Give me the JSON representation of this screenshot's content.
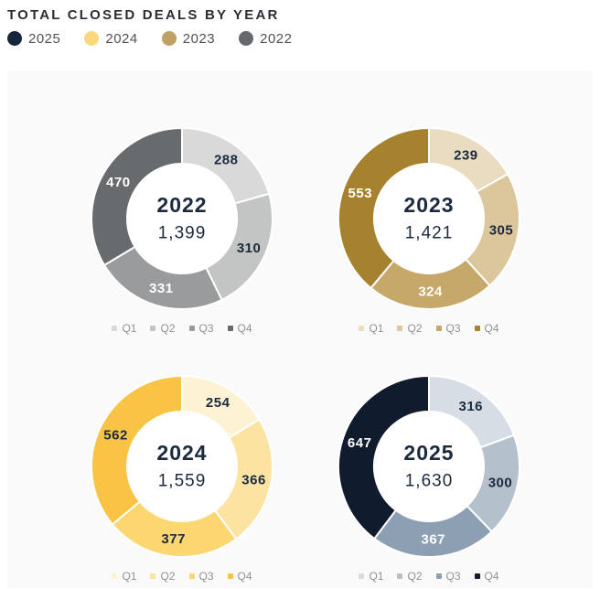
{
  "header": {
    "title": "TOTAL CLOSED DEALS BY YEAR",
    "year_legend": [
      {
        "label": "2025",
        "color": "#17253c"
      },
      {
        "label": "2024",
        "color": "#fbd87c"
      },
      {
        "label": "2023",
        "color": "#c0a164"
      },
      {
        "label": "2022",
        "color": "#65686c"
      }
    ]
  },
  "panel": {
    "background": "#fafafa"
  },
  "text_colors": {
    "dark": "#1c2a3e",
    "light": "#ffffff"
  },
  "chart_data": [
    {
      "type": "donut",
      "year": "2022",
      "total": 1399,
      "total_display": "1,399",
      "categories": [
        "Q1",
        "Q2",
        "Q3",
        "Q4"
      ],
      "values": [
        288,
        310,
        331,
        470
      ],
      "slice_colors": [
        "#d9d9d9",
        "#c3c4c4",
        "#9a9b9c",
        "#686b6e"
      ],
      "value_label_colors": [
        "dark",
        "dark",
        "light",
        "light"
      ],
      "legend_position": "bottom",
      "start_angle": "top",
      "direction": "clockwise"
    },
    {
      "type": "donut",
      "year": "2023",
      "total": 1421,
      "total_display": "1,421",
      "categories": [
        "Q1",
        "Q2",
        "Q3",
        "Q4"
      ],
      "values": [
        239,
        305,
        324,
        553
      ],
      "slice_colors": [
        "#eadcc0",
        "#dcc69b",
        "#c7a86b",
        "#a6822f"
      ],
      "value_label_colors": [
        "dark",
        "dark",
        "light",
        "light"
      ],
      "legend_position": "bottom",
      "start_angle": "top",
      "direction": "clockwise"
    },
    {
      "type": "donut",
      "year": "2024",
      "total": 1559,
      "total_display": "1,559",
      "categories": [
        "Q1",
        "Q2",
        "Q3",
        "Q4"
      ],
      "values": [
        254,
        366,
        377,
        562
      ],
      "slice_colors": [
        "#fdf2d3",
        "#fde3a2",
        "#fcd671",
        "#f9c445"
      ],
      "value_label_colors": [
        "dark",
        "dark",
        "dark",
        "dark"
      ],
      "legend_position": "bottom",
      "start_angle": "top",
      "direction": "clockwise"
    },
    {
      "type": "donut",
      "year": "2025",
      "total": 1630,
      "total_display": "1,630",
      "categories": [
        "Q1",
        "Q2",
        "Q3",
        "Q4"
      ],
      "values": [
        316,
        300,
        367,
        647
      ],
      "slice_colors": [
        "#d7dde4",
        "#b4c0cc",
        "#8da0b3",
        "#101b2d"
      ],
      "value_label_colors": [
        "dark",
        "dark",
        "light",
        "light"
      ],
      "legend_position": "bottom",
      "start_angle": "top",
      "direction": "clockwise"
    }
  ]
}
